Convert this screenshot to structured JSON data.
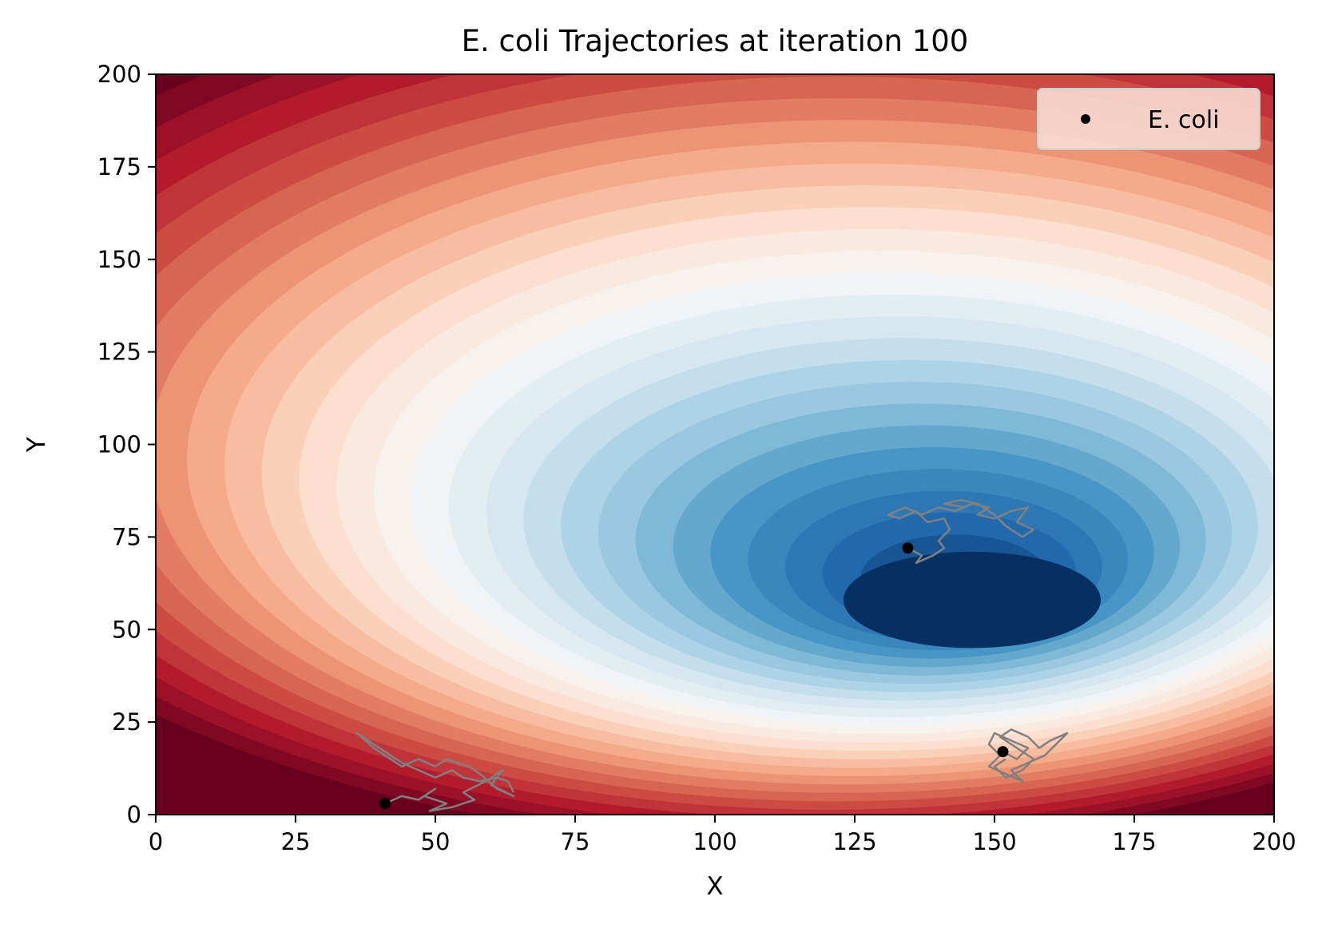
{
  "chart_data": {
    "type": "scatter",
    "title": "E. coli Trajectories at iteration 100",
    "xlabel": "X",
    "ylabel": "Y",
    "xlim": [
      0,
      200
    ],
    "ylim": [
      0,
      200
    ],
    "xticks": [
      "0",
      "25",
      "50",
      "75",
      "100",
      "125",
      "150",
      "175",
      "200"
    ],
    "yticks": [
      "0",
      "25",
      "50",
      "75",
      "100",
      "125",
      "150",
      "175",
      "200"
    ],
    "grid": false,
    "legend": {
      "placement": "top-right",
      "entries": [
        "E. coli"
      ]
    },
    "background": {
      "kind": "filled-contour",
      "colormap": "RdBu",
      "minimum_center": [
        146,
        58
      ],
      "colors": {
        "high": "#67001f",
        "mid": "#f7f7f7",
        "low": "#053061"
      }
    },
    "series": [
      {
        "name": "E. coli",
        "marker_color": "#000000",
        "trail_color": "#808080",
        "points": [
          {
            "x": 41,
            "y": 3
          },
          {
            "x": 134.5,
            "y": 72
          },
          {
            "x": 151.5,
            "y": 17
          }
        ]
      }
    ],
    "trajectories": [
      [
        [
          41,
          3
        ],
        [
          44,
          5
        ],
        [
          47,
          4
        ],
        [
          50,
          7
        ],
        [
          48,
          5
        ],
        [
          52,
          3
        ],
        [
          49,
          1
        ],
        [
          53,
          2
        ],
        [
          57,
          4
        ],
        [
          55,
          6
        ],
        [
          59,
          9
        ],
        [
          62,
          12
        ],
        [
          60,
          8
        ],
        [
          64,
          5
        ],
        [
          61,
          7
        ],
        [
          58,
          11
        ],
        [
          56,
          13
        ],
        [
          52,
          15
        ],
        [
          50,
          13
        ],
        [
          47,
          15
        ],
        [
          44,
          13
        ],
        [
          41,
          16
        ],
        [
          39,
          18
        ],
        [
          36,
          22
        ],
        [
          38,
          20
        ],
        [
          41,
          17
        ],
        [
          44,
          14
        ],
        [
          47,
          12
        ],
        [
          50,
          10
        ],
        [
          53,
          12
        ],
        [
          55,
          10
        ],
        [
          58,
          9
        ],
        [
          61,
          10
        ],
        [
          63,
          9
        ],
        [
          64,
          6
        ]
      ],
      [
        [
          134.5,
          72
        ],
        [
          137,
          70
        ],
        [
          136,
          68
        ],
        [
          139,
          70
        ],
        [
          141,
          72
        ],
        [
          140,
          74
        ],
        [
          142,
          77
        ],
        [
          141,
          80
        ],
        [
          138,
          79
        ],
        [
          136,
          82
        ],
        [
          133,
          80
        ],
        [
          131,
          81
        ],
        [
          134,
          83
        ],
        [
          137,
          81
        ],
        [
          140,
          83
        ],
        [
          143,
          82
        ],
        [
          146,
          84
        ],
        [
          149,
          83
        ],
        [
          147,
          81
        ],
        [
          150,
          80
        ],
        [
          153,
          82
        ],
        [
          156,
          83
        ],
        [
          154,
          79
        ],
        [
          157,
          77
        ],
        [
          155,
          75
        ],
        [
          152,
          78
        ],
        [
          150,
          81
        ],
        [
          147,
          84
        ],
        [
          144,
          85
        ],
        [
          141,
          84
        ],
        [
          145,
          83
        ]
      ],
      [
        [
          151.5,
          17
        ],
        [
          154,
          15
        ],
        [
          156,
          18
        ],
        [
          153,
          20
        ],
        [
          150,
          22
        ],
        [
          149,
          19
        ],
        [
          151,
          16
        ],
        [
          149,
          13
        ],
        [
          152,
          11
        ],
        [
          155,
          9
        ],
        [
          153,
          12
        ],
        [
          156,
          14
        ],
        [
          159,
          16
        ],
        [
          161,
          19
        ],
        [
          163,
          22
        ],
        [
          160,
          20
        ],
        [
          158,
          18
        ],
        [
          156,
          21
        ],
        [
          153,
          23
        ],
        [
          151,
          21
        ],
        [
          154,
          18
        ],
        [
          157,
          15
        ],
        [
          155,
          12
        ],
        [
          152,
          10
        ],
        [
          150,
          13
        ],
        [
          152,
          15
        ]
      ]
    ]
  }
}
